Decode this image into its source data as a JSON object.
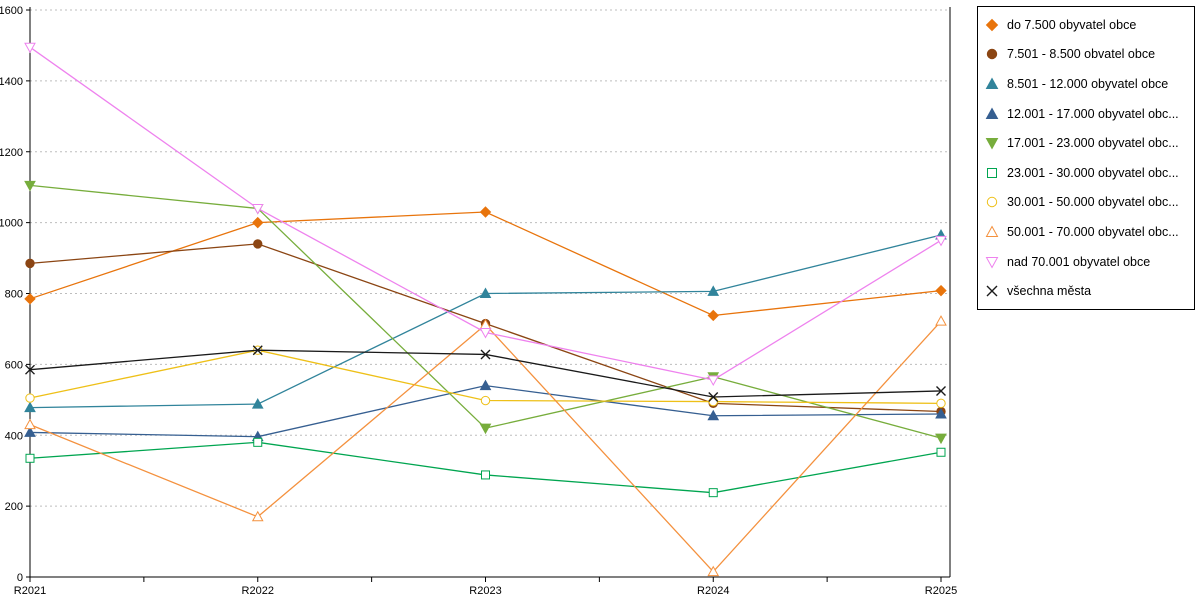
{
  "chart_data": {
    "type": "line",
    "title": "",
    "xlabel": "",
    "ylabel": "",
    "categories": [
      "R2021",
      "R2022",
      "R2023",
      "R2024",
      "R2025"
    ],
    "ylim": [
      0,
      1600
    ],
    "y_tick_step": 200,
    "y_tick_labels": [
      "0",
      "200",
      "400",
      "600",
      "800",
      "1000",
      "1200",
      "1400",
      "1600"
    ],
    "grid": "horizontal-dotted",
    "grid_color": "#bdbdbd",
    "axis_color": "#000000",
    "legend_position": "right",
    "series": [
      {
        "name": "do 7.500 obyvatel obce",
        "marker": "diamond",
        "filled": true,
        "color": "#E8740C",
        "values": [
          785,
          1000,
          1030,
          738,
          808
        ]
      },
      {
        "name": "7.501 - 8.500 obvatel obce",
        "marker": "circle",
        "filled": true,
        "color": "#8B4513",
        "values": [
          885,
          940,
          715,
          490,
          467
        ]
      },
      {
        "name": "8.501 - 12.000 obyvatel obce",
        "marker": "triangle-up",
        "filled": true,
        "color": "#31849B",
        "values": [
          478,
          488,
          800,
          806,
          965
        ]
      },
      {
        "name": "12.001 - 17.000 obyvatel obc...",
        "marker": "triangle-up",
        "filled": true,
        "color": "#365F91",
        "values": [
          408,
          396,
          540,
          455,
          460
        ]
      },
      {
        "name": "17.001 - 23.000 obyvatel obc...",
        "marker": "triangle-down",
        "filled": true,
        "color": "#77AD3C",
        "values": [
          1105,
          1040,
          420,
          565,
          392
        ]
      },
      {
        "name": "23.001 - 30.000 obyvatel obc...",
        "marker": "square",
        "filled": false,
        "color": "#00A550",
        "values": [
          335,
          380,
          288,
          238,
          352
        ]
      },
      {
        "name": "30.001 - 50.000 obyvatel obc...",
        "marker": "circle",
        "filled": false,
        "color": "#EEC018",
        "values": [
          505,
          640,
          498,
          495,
          490
        ]
      },
      {
        "name": "50.001 - 70.000 obyvatel obc...",
        "marker": "triangle-up",
        "filled": false,
        "color": "#F4913E",
        "values": [
          430,
          170,
          712,
          15,
          722
        ]
      },
      {
        "name": "nad 70.001 obyvatel obce",
        "marker": "triangle-down",
        "filled": false,
        "color": "#EE82EE",
        "values": [
          1495,
          1040,
          690,
          556,
          950
        ]
      },
      {
        "name": "všechna města",
        "marker": "x-cross",
        "filled": false,
        "color": "#1A1A1A",
        "values": [
          585,
          640,
          628,
          508,
          525
        ]
      }
    ]
  }
}
